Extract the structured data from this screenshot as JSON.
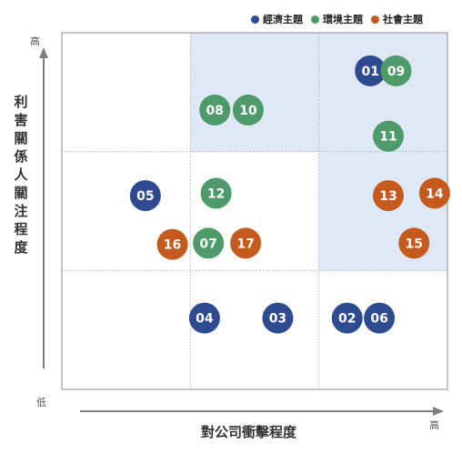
{
  "legend": [
    {
      "label": "經濟主題",
      "color": "#2e4b8f"
    },
    {
      "label": "環境主題",
      "color": "#4e9a6b"
    },
    {
      "label": "社會主題",
      "color": "#c55a1e"
    }
  ],
  "axes": {
    "ylabel": "利害關係人關注程度",
    "xlabel": "對公司衝擊程度",
    "y_high": "高",
    "y_low": "低",
    "x_high": "高"
  },
  "chart_data": {
    "type": "scatter",
    "title": "",
    "xlabel": "對公司衝擊程度",
    "ylabel": "利害關係人關注程度",
    "xlim": [
      0,
      3
    ],
    "ylim": [
      0,
      3
    ],
    "quadrants": 3,
    "highlighted_cells": [
      [
        1,
        2
      ],
      [
        2,
        2
      ],
      [
        2,
        1
      ]
    ],
    "series": [
      {
        "name": "經濟主題",
        "color": "#2e4b8f",
        "points": [
          {
            "label": "01",
            "x": 2.4,
            "y": 2.68
          },
          {
            "label": "02",
            "x": 2.22,
            "y": 0.6
          },
          {
            "label": "03",
            "x": 1.68,
            "y": 0.6
          },
          {
            "label": "04",
            "x": 1.11,
            "y": 0.6
          },
          {
            "label": "05",
            "x": 0.65,
            "y": 1.63
          },
          {
            "label": "06",
            "x": 2.47,
            "y": 0.6
          }
        ]
      },
      {
        "name": "環境主題",
        "color": "#4e9a6b",
        "points": [
          {
            "label": "07",
            "x": 1.14,
            "y": 1.23
          },
          {
            "label": "08",
            "x": 1.19,
            "y": 2.35
          },
          {
            "label": "09",
            "x": 2.6,
            "y": 2.68
          },
          {
            "label": "10",
            "x": 1.45,
            "y": 2.35
          },
          {
            "label": "11",
            "x": 2.54,
            "y": 2.13
          },
          {
            "label": "12",
            "x": 1.2,
            "y": 1.65
          }
        ]
      },
      {
        "name": "社會主題",
        "color": "#c55a1e",
        "points": [
          {
            "label": "13",
            "x": 2.54,
            "y": 1.63
          },
          {
            "label": "14",
            "x": 2.9,
            "y": 1.65
          },
          {
            "label": "15",
            "x": 2.74,
            "y": 1.23
          },
          {
            "label": "16",
            "x": 0.86,
            "y": 1.22
          },
          {
            "label": "17",
            "x": 1.43,
            "y": 1.23
          }
        ]
      }
    ]
  }
}
